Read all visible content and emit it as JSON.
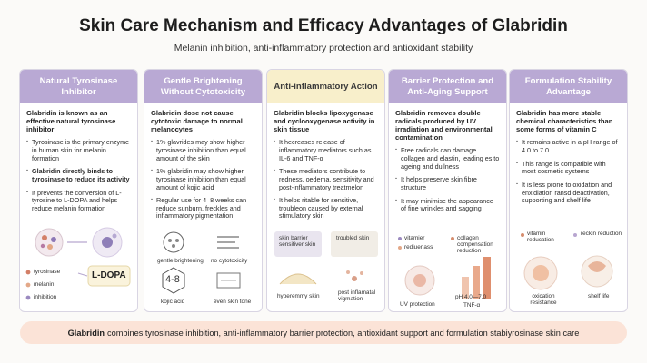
{
  "header": {
    "title": "Skin Care Mechanism and Efficacy Advantages of Glabridin",
    "subtitle": "Melanin inhibition, anti-inflammatory protection and antioxidant stability"
  },
  "columns": [
    {
      "title": "Natural Tyrosinase Inhibitor",
      "lead": "Glabridin is known as an effective natural tyrosinase inhibitor",
      "bullets": [
        "Tyrosinase is the primary enzyme in human skin for melanin formation",
        "Glabridin directly binds to tyrosinase to reduce its activity",
        "It prevents the conversion of L-tyrosine to L-DOPA and helps reduce melanin formation"
      ],
      "legend": [
        "tyrosinase",
        "melanin",
        "inhibition"
      ],
      "ldopa": "L-DOPA"
    },
    {
      "title": "Gentle Brightening Without Cytotoxicity",
      "lead": "Glabridin dose not cause cytotoxic damage to normal melanocytes",
      "bullets": [
        "1% glavrides may show higher tyrosinase inhibition than equal amount of the skin",
        "1% glabridin may show higher tyrosinase inhibition than equal amount of kojic acid",
        "Regular use for 4–8 weeks can reduce sunburn, freckles and inflammatory pigmentation"
      ],
      "icons": [
        "gentle brightening",
        "no cytotoxicity",
        "kojic acid",
        "even skin tone"
      ],
      "kojic_text": "4-8"
    },
    {
      "title": "Anti-inflammatory Action",
      "lead": "Glabridin blocks lipoxygenase and cyclooxygenase activity in skin tissue",
      "bullets": [
        "It hecreases release of inflammatory mediators such as IL-6 and TNF-α",
        "These mediators contribute to redness, oedema, sensitivity and post-inflammatory treatmelon",
        "It helps ritable for sensitive, troubleon caused by external stimulatory skin"
      ],
      "icons": [
        "skin barrier sensitiver skin",
        "troubled skin",
        "hyperemmy skin",
        "post inflamatal vigmation"
      ]
    },
    {
      "title": "Barrier Protection and Anti-Aging Support",
      "lead": "Glabridin removes double radicals produced by UV irradiation and environmental contamination",
      "bullets": [
        "Free radicals can damage collagen and elastin, leading es to ageing and dullness",
        "It helps preserve skin fibre structure",
        "It may minimise the appearance of fine wrinkles and sagging"
      ],
      "legend": [
        "vitamier",
        "rediuenass",
        "collagen compensation reduction"
      ],
      "bottom_labels": [
        "UV protection",
        "pH 4.0—7.0",
        "TNF-α"
      ]
    },
    {
      "title": "Formulation Stability Advantage",
      "lead": "Glabridin has more stable chemical characteristics than some forms of vitamin C",
      "bullets": [
        "It remains active in a pH range of 4.0 to 7.0",
        "This range is compatible with most cosmetic systems",
        "It is less prone to oxidation and enxidiation ransd deactivation, supporting and shelf life"
      ],
      "icons": [
        "vitamin reducation",
        "reckin reduction",
        "oxication resistance",
        "shelf life"
      ]
    }
  ],
  "footer": {
    "strong": "Glabridin",
    "text": "combines tyrosinase inhibition, anti-inflammatory barrier protection, antioxidant support and formulation stabiyrosinase skin care"
  },
  "colors": {
    "header_purple": "#b9a9d4",
    "header_yellow": "#f8efcb",
    "footer_peach": "#fbe3d7"
  }
}
